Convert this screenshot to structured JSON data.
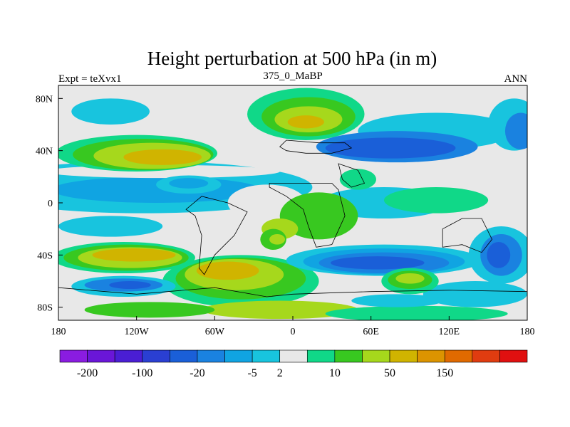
{
  "chart_data": {
    "type": "heatmap",
    "title": "Height perturbation at 500 hPa (in m)",
    "left_string": "Expt = teXvx1",
    "center_string": "375_0_MaBP",
    "right_string": "ANN",
    "x_range": [
      -180,
      180
    ],
    "y_range": [
      -90,
      90
    ],
    "x_ticks": [
      {
        "value": -180,
        "label": "180"
      },
      {
        "value": -120,
        "label": "120W"
      },
      {
        "value": -60,
        "label": "60W"
      },
      {
        "value": 0,
        "label": "0"
      },
      {
        "value": 60,
        "label": "60E"
      },
      {
        "value": 120,
        "label": "120E"
      },
      {
        "value": 180,
        "label": "180"
      }
    ],
    "y_ticks": [
      {
        "value": 80,
        "label": "80N"
      },
      {
        "value": 40,
        "label": "40N"
      },
      {
        "value": 0,
        "label": "0"
      },
      {
        "value": -40,
        "label": "40S"
      },
      {
        "value": -80,
        "label": "80S"
      }
    ],
    "colorbar": {
      "colors": [
        "#8a1ce0",
        "#6a16d8",
        "#4a1ed4",
        "#2a3fd2",
        "#1a5fd8",
        "#1a82e0",
        "#10a4e2",
        "#18c4de",
        "#e8e8e8",
        "#10d888",
        "#38c820",
        "#a6d81c",
        "#d0b400",
        "#dc9400",
        "#e06a00",
        "#e03c10",
        "#e01010"
      ],
      "labels": [
        "-200",
        "-100",
        "-20",
        "-5",
        "2",
        "10",
        "50",
        "150"
      ],
      "label_after_box": [
        1,
        3,
        5,
        7,
        8,
        10,
        12,
        14
      ]
    },
    "palette": {
      "gray": "#e8e8e8",
      "dblue": "#1a5fd8",
      "mblue": "#1a82e0",
      "lblue": "#10a4e2",
      "cyan": "#18c4de",
      "mint": "#10d888",
      "green": "#38c820",
      "lime": "#a6d81c",
      "gold": "#d0b400"
    },
    "fields": [
      {
        "color": "cyan",
        "lon": -115,
        "lat": 12,
        "rlon": 130,
        "rlat": 20
      },
      {
        "color": "lblue",
        "lon": -105,
        "lat": 10,
        "rlon": 80,
        "rlat": 10
      },
      {
        "color": "gray",
        "lon": -20,
        "lat": 0,
        "rlon": 30,
        "rlat": 14
      },
      {
        "color": "gray",
        "lon": 120,
        "lat": -22,
        "rlon": 40,
        "rlat": 8
      },
      {
        "color": "gray",
        "lon": -100,
        "lat": 24,
        "rlon": 90,
        "rlat": 5
      },
      {
        "color": "gray",
        "lon": -100,
        "lat": -22,
        "rlon": 90,
        "rlat": 4
      },
      {
        "color": "cyan",
        "lon": 70,
        "lat": 0,
        "rlon": 50,
        "rlat": 12
      },
      {
        "color": "mint",
        "lon": 110,
        "lat": 2,
        "rlon": 40,
        "rlat": 10
      },
      {
        "color": "green",
        "lon": 20,
        "lat": -10,
        "rlon": 30,
        "rlat": 18
      },
      {
        "color": "lime",
        "lon": -10,
        "lat": -20,
        "rlon": 14,
        "rlat": 8
      },
      {
        "color": "gray",
        "lon": -145,
        "lat": 68,
        "rlon": 40,
        "rlat": 16
      },
      {
        "color": "cyan",
        "lon": -140,
        "lat": 70,
        "rlon": 30,
        "rlat": 10
      },
      {
        "color": "gray",
        "lon": -50,
        "lat": 82,
        "rlon": 20,
        "rlat": 8
      },
      {
        "color": "mint",
        "lon": -120,
        "lat": 38,
        "rlon": 62,
        "rlat": 14
      },
      {
        "color": "green",
        "lon": -115,
        "lat": 37,
        "rlon": 54,
        "rlat": 12
      },
      {
        "color": "lime",
        "lon": -108,
        "lat": 36,
        "rlon": 45,
        "rlat": 10
      },
      {
        "color": "gold",
        "lon": -100,
        "lat": 35,
        "rlon": 30,
        "rlat": 6
      },
      {
        "color": "mint",
        "lon": 10,
        "lat": 68,
        "rlon": 45,
        "rlat": 20
      },
      {
        "color": "green",
        "lon": 12,
        "lat": 66,
        "rlon": 36,
        "rlat": 15
      },
      {
        "color": "lime",
        "lon": 12,
        "lat": 64,
        "rlon": 26,
        "rlat": 10
      },
      {
        "color": "gold",
        "lon": 10,
        "lat": 62,
        "rlon": 14,
        "rlat": 5
      },
      {
        "color": "cyan",
        "lon": 110,
        "lat": 55,
        "rlon": 60,
        "rlat": 14
      },
      {
        "color": "mblue",
        "lon": 80,
        "lat": 43,
        "rlon": 62,
        "rlat": 12
      },
      {
        "color": "dblue",
        "lon": 75,
        "lat": 42,
        "rlon": 50,
        "rlat": 8
      },
      {
        "color": "cyan",
        "lon": 170,
        "lat": 60,
        "rlon": 20,
        "rlat": 20
      },
      {
        "color": "mblue",
        "lon": 175,
        "lat": 55,
        "rlon": 12,
        "rlat": 14
      },
      {
        "color": "cyan",
        "lon": -140,
        "lat": -18,
        "rlon": 40,
        "rlat": 8
      },
      {
        "color": "cyan",
        "lon": -80,
        "lat": 14,
        "rlon": 25,
        "rlat": 7
      },
      {
        "color": "lblue",
        "lon": -80,
        "lat": 15,
        "rlon": 15,
        "rlat": 4
      },
      {
        "color": "mint",
        "lon": 50,
        "lat": 18,
        "rlon": 14,
        "rlat": 8
      },
      {
        "color": "mint",
        "lon": -130,
        "lat": -42,
        "rlon": 55,
        "rlat": 12
      },
      {
        "color": "green",
        "lon": -128,
        "lat": -42,
        "rlon": 48,
        "rlat": 10
      },
      {
        "color": "lime",
        "lon": -125,
        "lat": -42,
        "rlon": 40,
        "rlat": 8
      },
      {
        "color": "gold",
        "lon": -122,
        "lat": -40,
        "rlon": 32,
        "rlat": 5
      },
      {
        "color": "mint",
        "lon": -40,
        "lat": -60,
        "rlon": 60,
        "rlat": 20
      },
      {
        "color": "green",
        "lon": -40,
        "lat": -58,
        "rlon": 50,
        "rlat": 16
      },
      {
        "color": "lime",
        "lon": -45,
        "lat": -55,
        "rlon": 38,
        "rlat": 12
      },
      {
        "color": "gold",
        "lon": -50,
        "lat": -52,
        "rlon": 24,
        "rlat": 7
      },
      {
        "color": "lime",
        "lon": -10,
        "lat": -82,
        "rlon": 60,
        "rlat": 7
      },
      {
        "color": "green",
        "lon": -110,
        "lat": -82,
        "rlon": 50,
        "rlat": 6
      },
      {
        "color": "cyan",
        "lon": -130,
        "lat": -64,
        "rlon": 40,
        "rlat": 8
      },
      {
        "color": "mblue",
        "lon": -130,
        "lat": -63,
        "rlon": 30,
        "rlat": 5
      },
      {
        "color": "dblue",
        "lon": -125,
        "lat": -63,
        "rlon": 16,
        "rlat": 3
      },
      {
        "color": "cyan",
        "lon": 70,
        "lat": -44,
        "rlon": 75,
        "rlat": 12
      },
      {
        "color": "lblue",
        "lon": 70,
        "lat": -45,
        "rlon": 62,
        "rlat": 10
      },
      {
        "color": "mblue",
        "lon": 70,
        "lat": -46,
        "rlon": 50,
        "rlat": 8
      },
      {
        "color": "dblue",
        "lon": 65,
        "lat": -46,
        "rlon": 36,
        "rlat": 5
      },
      {
        "color": "cyan",
        "lon": 160,
        "lat": -40,
        "rlon": 25,
        "rlat": 22
      },
      {
        "color": "mblue",
        "lon": 160,
        "lat": -40,
        "rlon": 16,
        "rlat": 16
      },
      {
        "color": "dblue",
        "lon": 158,
        "lat": -40,
        "rlon": 9,
        "rlat": 10
      },
      {
        "color": "cyan",
        "lon": 140,
        "lat": -70,
        "rlon": 40,
        "rlat": 10
      },
      {
        "color": "mint",
        "lon": 90,
        "lat": -60,
        "rlon": 22,
        "rlat": 10
      },
      {
        "color": "green",
        "lon": 90,
        "lat": -59,
        "rlon": 17,
        "rlat": 7
      },
      {
        "color": "lime",
        "lon": 90,
        "lat": -58,
        "rlon": 11,
        "rlat": 4
      },
      {
        "color": "green",
        "lon": -15,
        "lat": -28,
        "rlon": 10,
        "rlat": 8
      },
      {
        "color": "lime",
        "lon": -12,
        "lat": -28,
        "rlon": 6,
        "rlat": 4
      },
      {
        "color": "mint",
        "lon": 95,
        "lat": -85,
        "rlon": 70,
        "rlat": 6
      },
      {
        "color": "cyan",
        "lon": 80,
        "lat": -75,
        "rlon": 35,
        "rlat": 5
      }
    ],
    "continent_outlines": [
      [
        [
          -10,
          43
        ],
        [
          -5,
          48
        ],
        [
          20,
          46
        ],
        [
          40,
          46
        ],
        [
          45,
          42
        ],
        [
          30,
          38
        ],
        [
          10,
          38
        ],
        [
          -5,
          40
        ]
      ],
      [
        [
          -18,
          15
        ],
        [
          -10,
          15
        ],
        [
          30,
          15
        ],
        [
          35,
          10
        ],
        [
          40,
          -10
        ],
        [
          30,
          -32
        ],
        [
          18,
          -34
        ],
        [
          12,
          -18
        ],
        [
          8,
          -5
        ],
        [
          -5,
          5
        ],
        [
          -18,
          12
        ]
      ],
      [
        [
          35,
          30
        ],
        [
          50,
          25
        ],
        [
          55,
          15
        ],
        [
          45,
          12
        ],
        [
          38,
          18
        ]
      ],
      [
        [
          -82,
          -5
        ],
        [
          -75,
          -10
        ],
        [
          -70,
          -25
        ],
        [
          -72,
          -50
        ],
        [
          -68,
          -55
        ],
        [
          -60,
          -40
        ],
        [
          -45,
          -25
        ],
        [
          -35,
          -7
        ],
        [
          -50,
          0
        ],
        [
          -70,
          5
        ]
      ],
      [
        [
          115,
          -20
        ],
        [
          130,
          -12
        ],
        [
          145,
          -12
        ],
        [
          153,
          -28
        ],
        [
          145,
          -38
        ],
        [
          130,
          -32
        ],
        [
          115,
          -34
        ]
      ],
      [
        [
          -180,
          -65
        ],
        [
          -120,
          -70
        ],
        [
          -60,
          -65
        ],
        [
          -20,
          -72
        ],
        [
          0,
          -70
        ],
        [
          60,
          -68
        ],
        [
          120,
          -67
        ],
        [
          180,
          -68
        ],
        [
          180,
          -90
        ],
        [
          -180,
          -90
        ]
      ]
    ]
  }
}
